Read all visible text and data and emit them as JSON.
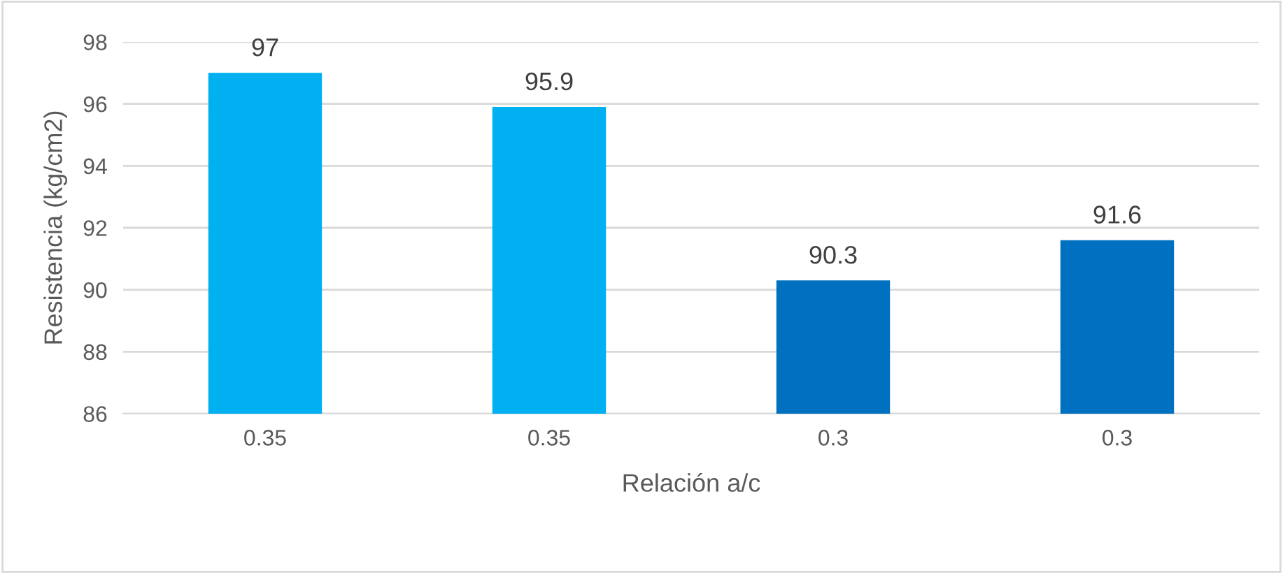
{
  "chart_data": {
    "type": "bar",
    "xlabel": "Relación a/c",
    "ylabel": "Resistencia (kg/cm2)",
    "categories": [
      "0.35",
      "0.35",
      "0.3",
      "0.3"
    ],
    "values": [
      97,
      95.9,
      90.3,
      91.6
    ],
    "colors": [
      "#00b0f0",
      "#00b0f0",
      "#0070c0",
      "#0070c0"
    ],
    "ylim": [
      86,
      98
    ],
    "yticks": [
      86,
      88,
      90,
      92,
      94,
      96,
      98
    ],
    "grid": "y",
    "data_labels": true,
    "legend": false
  }
}
